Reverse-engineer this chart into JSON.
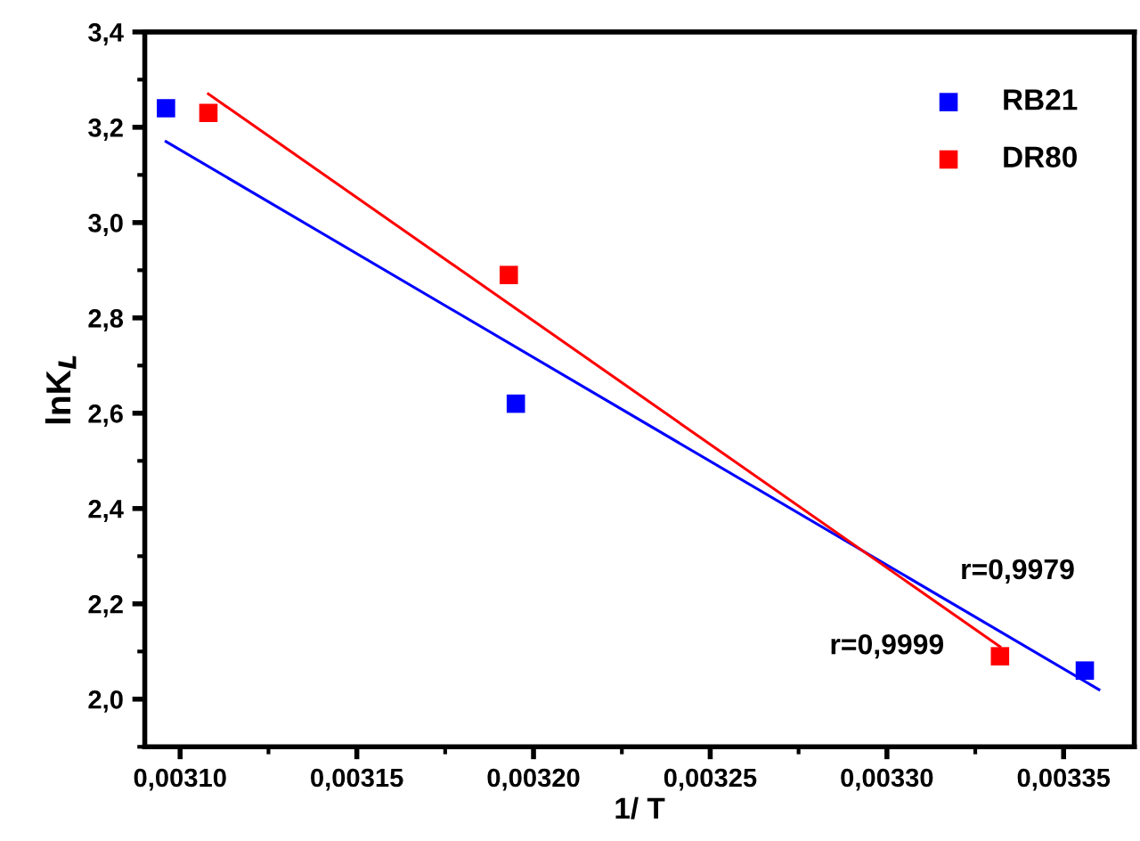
{
  "chart_data": {
    "type": "scatter",
    "xlabel": "1/ T",
    "ylabel": "lnK$_{L}$",
    "legend": "top right",
    "grid": false,
    "series": [
      {
        "name": "RB21",
        "marker": "square",
        "color": "#0000ff",
        "x": [
          0.003096,
          0.003195,
          0.003356
        ],
        "values": [
          3.24,
          2.62,
          2.06
        ]
      },
      {
        "name": "DR80",
        "marker": "square",
        "color": "#ff0000",
        "x": [
          0.003108,
          0.003193,
          0.003332
        ],
        "values": [
          3.23,
          2.89,
          2.09
        ]
      },
      {
        "type": "line",
        "marker": "none",
        "color": "#0000ff",
        "x": [
          0.003096,
          0.00336
        ],
        "values": [
          3.17,
          2.02
        ]
      },
      {
        "type": "line",
        "marker": "none",
        "color": "#ff0000",
        "x": [
          0.003108,
          0.003332
        ],
        "values": [
          3.27,
          2.11
        ]
      }
    ],
    "xlim": [
      0.00309,
      0.00337
    ],
    "xticks": [
      {
        "value": 0.0031,
        "label": "0,00310"
      },
      {
        "value": 0.00315,
        "label": "0,00315"
      },
      {
        "value": 0.0032,
        "label": "0,00320"
      },
      {
        "value": 0.00325,
        "label": "0,00325"
      },
      {
        "value": 0.0033,
        "label": "0,00330"
      },
      {
        "value": 0.00335,
        "label": "0,00335"
      }
    ],
    "ylim": [
      1.9,
      3.4
    ],
    "yticks": [
      {
        "value": 2.0,
        "label": "2,0"
      },
      {
        "value": 2.2,
        "label": "2,2"
      },
      {
        "value": 2.4,
        "label": "2,4"
      },
      {
        "value": 2.6,
        "label": "2,6"
      },
      {
        "value": 2.8,
        "label": "2,8"
      },
      {
        "value": 3.0,
        "label": "3,0"
      },
      {
        "value": 3.2,
        "label": "3,2"
      },
      {
        "value": 3.4,
        "label": "3,4"
      }
    ],
    "annotations": [
      "r=0,9979",
      "r=0,9999"
    ]
  }
}
